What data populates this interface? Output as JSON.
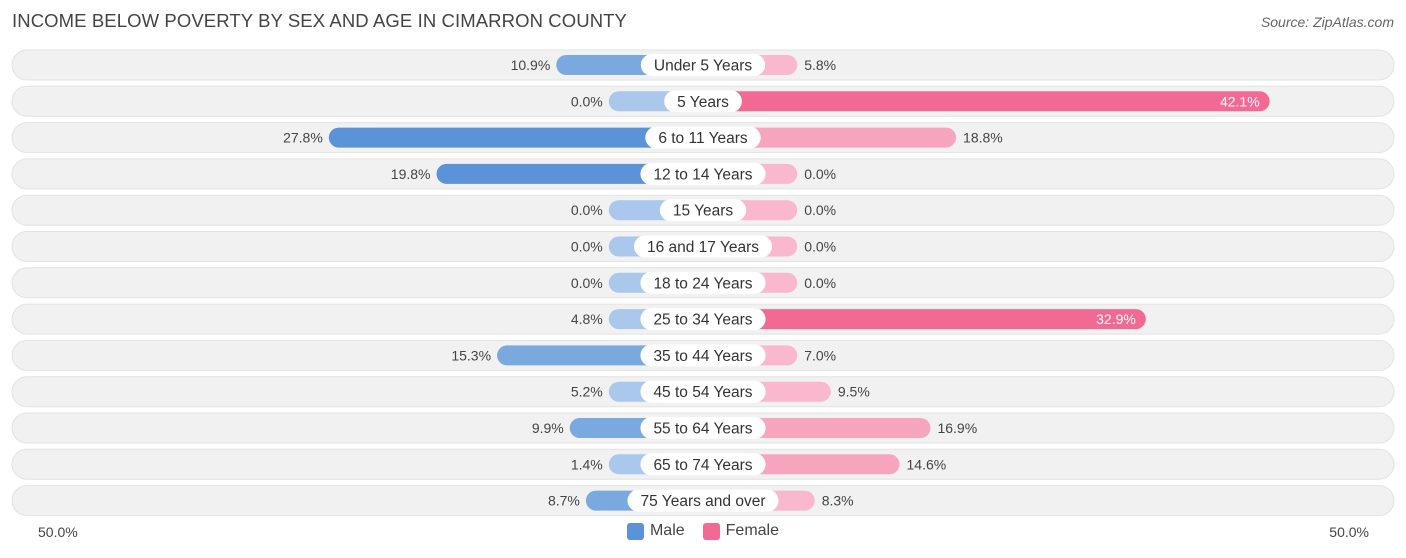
{
  "title": "INCOME BELOW POVERTY BY SEX AND AGE IN CIMARRON COUNTY",
  "source": "Source: ZipAtlas.com",
  "colors": {
    "male": "#7aa9e0",
    "male_strong": "#5b93d8",
    "male_light": "#a9c8ec",
    "female": "#f7a5bf",
    "female_strong": "#f26a94",
    "female_light": "#f9b8cd",
    "row_bg": "#f1f1f1"
  },
  "chart_data": {
    "type": "bar",
    "orientation": "horizontal-diverging",
    "title": "INCOME BELOW POVERTY BY SEX AND AGE IN CIMARRON COUNTY",
    "categories": [
      "Under 5 Years",
      "5 Years",
      "6 to 11 Years",
      "12 to 14 Years",
      "15 Years",
      "16 and 17 Years",
      "18 to 24 Years",
      "25 to 34 Years",
      "35 to 44 Years",
      "45 to 54 Years",
      "55 to 64 Years",
      "65 to 74 Years",
      "75 Years and over"
    ],
    "series": [
      {
        "name": "Male",
        "values": [
          10.9,
          0.0,
          27.8,
          19.8,
          0.0,
          0.0,
          0.0,
          4.8,
          15.3,
          5.2,
          9.9,
          1.4,
          8.7
        ],
        "labels": [
          "10.9%",
          "0.0%",
          "27.8%",
          "19.8%",
          "0.0%",
          "0.0%",
          "0.0%",
          "4.8%",
          "15.3%",
          "5.2%",
          "9.9%",
          "1.4%",
          "8.7%"
        ]
      },
      {
        "name": "Female",
        "values": [
          5.8,
          42.1,
          18.8,
          0.0,
          0.0,
          0.0,
          0.0,
          32.9,
          7.0,
          9.5,
          16.9,
          14.6,
          8.3
        ],
        "labels": [
          "5.8%",
          "42.1%",
          "18.8%",
          "0.0%",
          "0.0%",
          "0.0%",
          "0.0%",
          "32.9%",
          "7.0%",
          "9.5%",
          "16.9%",
          "14.6%",
          "8.3%"
        ]
      }
    ],
    "xlim": [
      -50,
      50
    ],
    "axis_left_label": "50.0%",
    "axis_right_label": "50.0%",
    "legend": [
      "Male",
      "Female"
    ],
    "legend_position": "bottom-center",
    "min_stub_value": 7.0
  }
}
